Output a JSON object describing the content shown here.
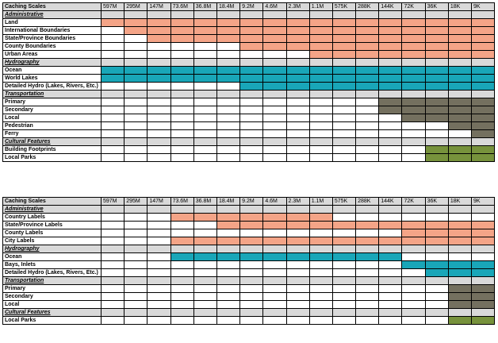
{
  "colors": {
    "administrative": "#f4a487",
    "hydrography": "#19a6b8",
    "transportation": "#74705f",
    "cultural": "#77923c",
    "header_bg": "#d9d9d9"
  },
  "tables": [
    {
      "header_label": "Caching Scales",
      "scales": [
        "597M",
        "295M",
        "147M",
        "73.6M",
        "36.8M",
        "18.4M",
        "9.2M",
        "4.6M",
        "2.3M",
        "1.1M",
        "575K",
        "288K",
        "144K",
        "72K",
        "36K",
        "18K",
        "9K"
      ],
      "sections": [
        {
          "title": "Administrative",
          "color": "administrative",
          "rows": [
            {
              "label": "Land",
              "start": 0
            },
            {
              "label": "International Boundaries",
              "start": 1
            },
            {
              "label": "State/Province Boundaries",
              "start": 2
            },
            {
              "label": "County Boundaries",
              "start": 6
            },
            {
              "label": "Urban Areas",
              "start": 9
            }
          ]
        },
        {
          "title": "Hydrography",
          "color": "hydrography",
          "rows": [
            {
              "label": "Ocean",
              "start": 0
            },
            {
              "label": "World Lakes",
              "start": 0
            },
            {
              "label": "Detailed Hydro (Lakes, Rivers, Etc.)",
              "start": 6
            }
          ]
        },
        {
          "title": "Transportation",
          "color": "transportation",
          "rows": [
            {
              "label": "Primary",
              "start": 12
            },
            {
              "label": "Secondary",
              "start": 12
            },
            {
              "label": "Local",
              "start": 13
            },
            {
              "label": "Pedestrian",
              "start": 15
            },
            {
              "label": "Ferry",
              "start": 16
            }
          ]
        },
        {
          "title": "Cultural Features",
          "color": "cultural",
          "rows": [
            {
              "label": "Building Footprints",
              "start": 14
            },
            {
              "label": "Local Parks",
              "start": 14
            }
          ]
        }
      ]
    },
    {
      "header_label": "Caching Scales",
      "scales": [
        "597M",
        "295M",
        "147M",
        "73.6M",
        "36.8M",
        "18.4M",
        "9.2M",
        "4.6M",
        "2.3M",
        "1.1M",
        "575K",
        "288K",
        "144K",
        "72K",
        "36K",
        "18K",
        "9K"
      ],
      "sections": [
        {
          "title": "Administrative",
          "color": "administrative",
          "rows": [
            {
              "label": "Country Labels",
              "start": 3,
              "end": 9
            },
            {
              "label": "State/Province Labels",
              "start": 5
            },
            {
              "label": "County Labels",
              "start": 13
            },
            {
              "label": "City Labels",
              "start": 3
            }
          ]
        },
        {
          "title": "Hydrography",
          "color": "hydrography",
          "rows": [
            {
              "label": "Ocean",
              "start": 3,
              "end": 12
            },
            {
              "label": "Bays, Inlets",
              "start": 13
            },
            {
              "label": "Detailed Hydro (Lakes, Rivers, Etc.)",
              "start": 14
            }
          ]
        },
        {
          "title": "Transportation",
          "color": "transportation",
          "rows": [
            {
              "label": "Primary",
              "start": 15
            },
            {
              "label": "Secondary",
              "start": 15
            },
            {
              "label": "Local",
              "start": 15
            }
          ]
        },
        {
          "title": "Cultural Features",
          "color": "cultural",
          "rows": [
            {
              "label": "Local Parks",
              "start": 15
            }
          ]
        }
      ]
    }
  ]
}
